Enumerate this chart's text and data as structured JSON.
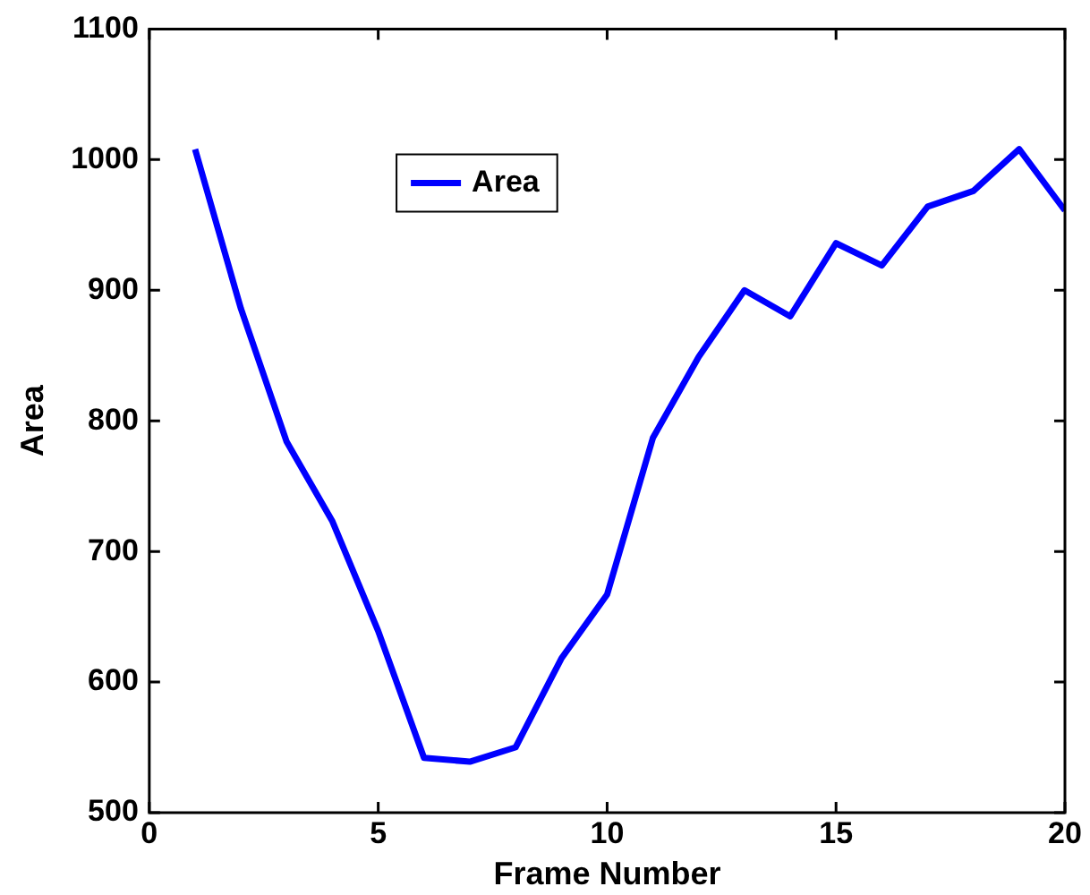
{
  "chart_data": {
    "type": "line",
    "xlabel": "Frame Number",
    "ylabel": "Area",
    "x": [
      1,
      2,
      3,
      4,
      5,
      6,
      7,
      8,
      9,
      10,
      11,
      12,
      13,
      14,
      15,
      16,
      17,
      18,
      19,
      20
    ],
    "series": [
      {
        "name": "Area",
        "color": "#0000ff",
        "values": [
          1008,
          886,
          784,
          723,
          639,
          542,
          539,
          550,
          618,
          667,
          787,
          849,
          900,
          880,
          936,
          919,
          964,
          976,
          1008,
          961
        ]
      }
    ],
    "xlim": [
      0,
      20
    ],
    "xticks": [
      0,
      5,
      10,
      15,
      20
    ],
    "ylim": [
      500,
      1100
    ],
    "yticks": [
      500,
      600,
      700,
      800,
      900,
      1000,
      1100
    ],
    "grid": false,
    "legend": "top left",
    "marker": "none",
    "line_style": "solid"
  }
}
